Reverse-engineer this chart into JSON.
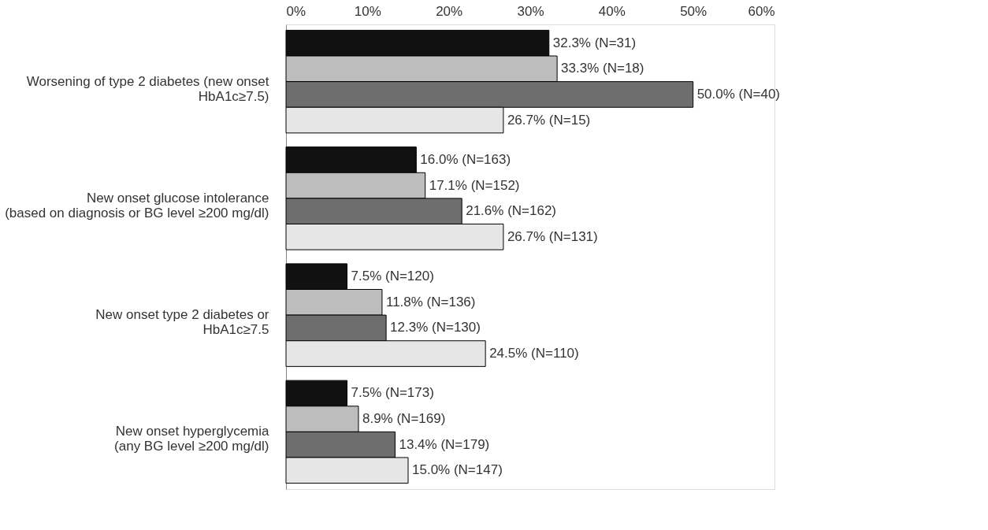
{
  "chart_data": {
    "type": "bar",
    "orientation": "horizontal",
    "categories": [
      "Worsening of type 2 diabetes (new onset\nHbA1c≥7.5)",
      "New onset glucose intolerance\n(based on diagnosis or BG level ≥200 mg/dl)",
      "New onset type 2 diabetes or\nHbA1c≥7.5",
      "New onset hyperglycemia\n(any BG level ≥200 mg/dl)"
    ],
    "series": [
      {
        "color": "#111111",
        "values": [
          32.3,
          16.0,
          7.5,
          7.5
        ],
        "value_labels": [
          "32.3% (N=31)",
          "16.0% (N=163)",
          "7.5% (N=120)",
          "7.5% (N=173)"
        ]
      },
      {
        "color": "#bdbdbd",
        "values": [
          33.3,
          17.1,
          11.8,
          8.9
        ],
        "value_labels": [
          "33.3% (N=18)",
          "17.1% (N=152)",
          "11.8% (N=136)",
          "8.9% (N=169)"
        ]
      },
      {
        "color": "#6e6e6e",
        "values": [
          50.0,
          21.6,
          12.3,
          13.4
        ],
        "value_labels": [
          "50.0% (N=40)",
          "21.6% (N=162)",
          "12.3% (N=130)",
          "13.4% (N=179)"
        ]
      },
      {
        "color": "#e6e6e6",
        "values": [
          26.7,
          26.7,
          24.5,
          15.0
        ],
        "value_labels": [
          "26.7% (N=15)",
          "26.7% (N=131)",
          "24.5% (N=110)",
          "15.0% (N=147)"
        ]
      }
    ],
    "xlim": [
      0,
      60
    ],
    "xticks": [
      {
        "value": 0,
        "label": "0%"
      },
      {
        "value": 10,
        "label": "10%"
      },
      {
        "value": 20,
        "label": "20%"
      },
      {
        "value": 30,
        "label": "30%"
      },
      {
        "value": 40,
        "label": "40%"
      },
      {
        "value": 50,
        "label": "50%"
      },
      {
        "value": 60,
        "label": "60%"
      }
    ],
    "grid": false,
    "legend": false
  }
}
